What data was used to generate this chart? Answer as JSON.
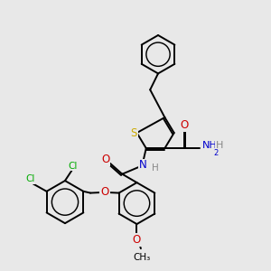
{
  "background_color": "#e8e8e8",
  "atom_colors": {
    "C": "#000000",
    "H": "#888888",
    "N": "#0000cc",
    "O": "#cc0000",
    "S": "#ccaa00",
    "Cl": "#00aa00"
  },
  "bond_color": "#000000",
  "bond_width": 1.4,
  "figsize": [
    3.0,
    3.0
  ],
  "dpi": 100,
  "xlim": [
    0,
    10
  ],
  "ylim": [
    0,
    10
  ]
}
